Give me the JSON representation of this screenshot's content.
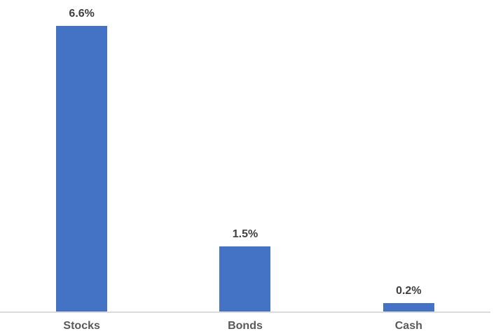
{
  "chart_data": {
    "type": "bar",
    "categories": [
      "Stocks",
      "Bonds",
      "Cash"
    ],
    "values": [
      6.6,
      1.5,
      0.2
    ],
    "value_labels": [
      "6.6%",
      "1.5%",
      "0.2%"
    ],
    "title": "",
    "xlabel": "",
    "ylabel": "",
    "ylim": [
      0,
      7.2
    ],
    "grid": false,
    "legend": false,
    "colors": {
      "bar": "#4472C4",
      "data_label": "#404040",
      "category_label": "#595959",
      "axis_line": "#DCDCDC",
      "background": "#FFFFFF"
    }
  }
}
